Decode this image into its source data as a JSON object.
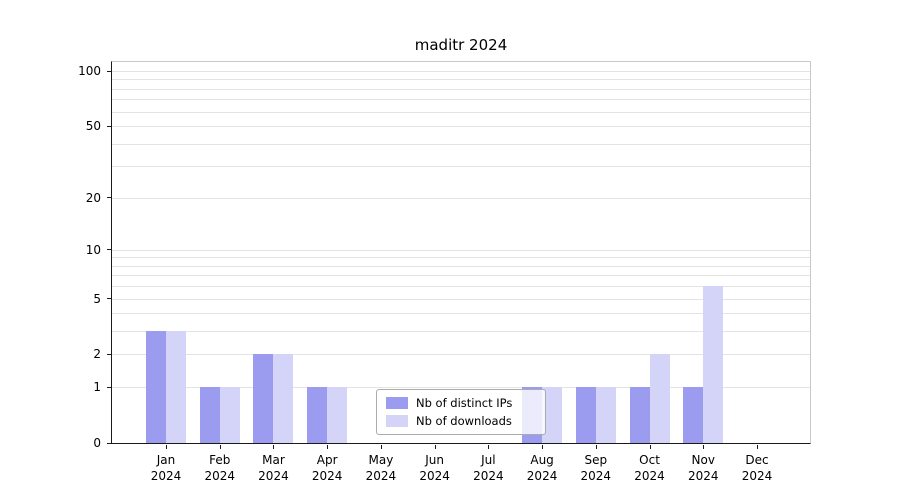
{
  "chart_data": {
    "type": "bar",
    "title": "maditr 2024",
    "year_label": "2024",
    "categories": [
      "Jan",
      "Feb",
      "Mar",
      "Apr",
      "May",
      "Jun",
      "Jul",
      "Aug",
      "Sep",
      "Oct",
      "Nov",
      "Dec"
    ],
    "series": [
      {
        "name": "Nb of distinct IPs",
        "color": "#9b9bef",
        "values": [
          3,
          1,
          2,
          1,
          0,
          0,
          0,
          1,
          1,
          1,
          1,
          0
        ]
      },
      {
        "name": "Nb of downloads",
        "color": "#d4d4f8",
        "values": [
          3,
          1,
          2,
          1,
          0,
          0,
          0,
          1,
          1,
          2,
          6,
          0
        ]
      }
    ],
    "y_ticks": [
      0,
      1,
      2,
      5,
      10,
      20,
      50,
      100
    ],
    "y_scale": "log1p",
    "ylim": [
      0,
      112
    ],
    "grid": true,
    "legend_position": "lower center"
  }
}
